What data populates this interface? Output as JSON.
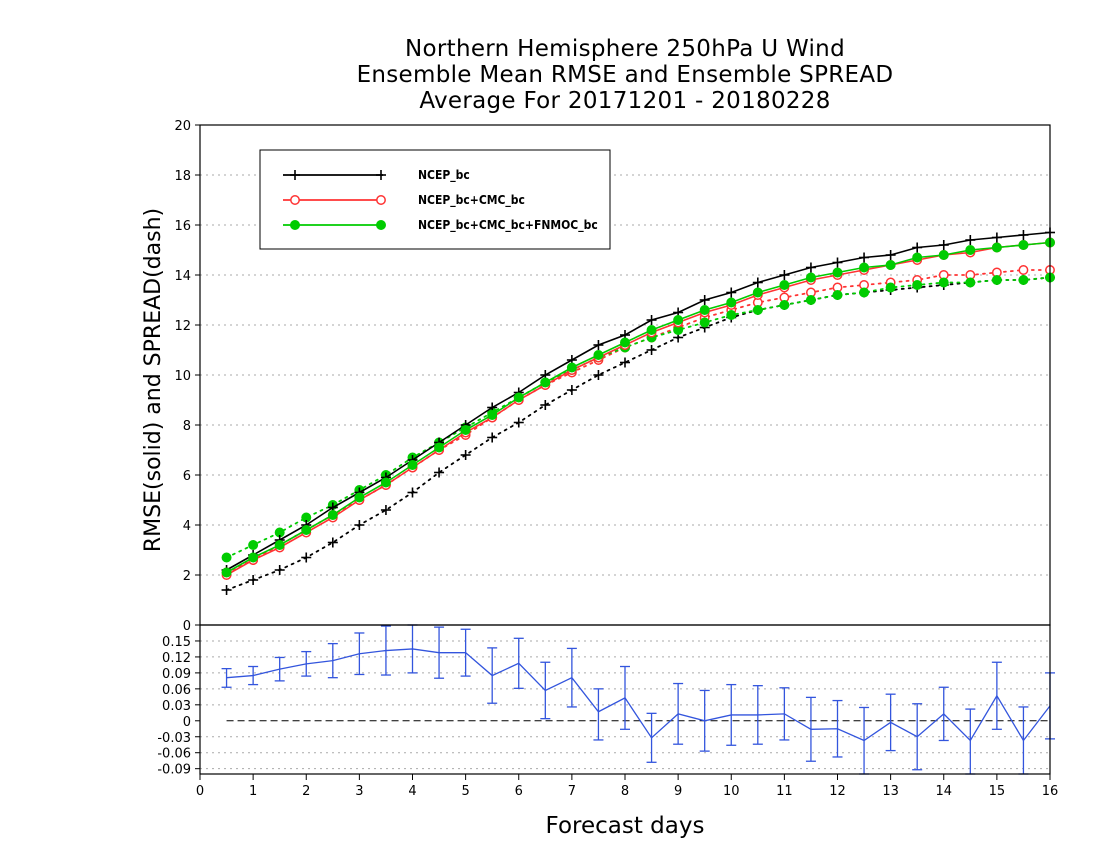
{
  "chart_data": [
    {
      "type": "line",
      "title": [
        "Northern Hemisphere 250hPa U Wind",
        "Ensemble Mean RMSE and Ensemble SPREAD",
        "Average For 20171201 - 20180228"
      ],
      "xlabel": "Forecast days",
      "ylabel": "RMSE(solid) and SPREAD(dash)",
      "xlim": [
        0,
        16
      ],
      "ylim": [
        0,
        20
      ],
      "xticks": [
        "0",
        "1",
        "2",
        "3",
        "4",
        "5",
        "6",
        "7",
        "8",
        "9",
        "10",
        "11",
        "12",
        "13",
        "14",
        "15",
        "16"
      ],
      "yticks": [
        "0",
        "2",
        "4",
        "6",
        "8",
        "10",
        "12",
        "14",
        "16",
        "18",
        "20"
      ],
      "grid": true,
      "legend_position": "top-left",
      "x": [
        0.5,
        1,
        1.5,
        2,
        2.5,
        3,
        3.5,
        4,
        4.5,
        5,
        5.5,
        6,
        6.5,
        7,
        7.5,
        8,
        8.5,
        9,
        9.5,
        10,
        10.5,
        11,
        11.5,
        12,
        12.5,
        13,
        13.5,
        14,
        14.5,
        15,
        15.5,
        16
      ],
      "series": [
        {
          "name": "NCEP_bc",
          "color": "#000000",
          "marker": "plus",
          "rmse": [
            2.2,
            2.8,
            3.4,
            4.0,
            4.7,
            5.3,
            5.9,
            6.6,
            7.3,
            8.0,
            8.7,
            9.3,
            10.0,
            10.6,
            11.2,
            11.6,
            12.2,
            12.5,
            13.0,
            13.3,
            13.7,
            14.0,
            14.3,
            14.5,
            14.7,
            14.8,
            15.1,
            15.2,
            15.4,
            15.5,
            15.6,
            15.7
          ],
          "spread": [
            1.4,
            1.8,
            2.2,
            2.7,
            3.3,
            4.0,
            4.6,
            5.3,
            6.1,
            6.8,
            7.5,
            8.1,
            8.8,
            9.4,
            10.0,
            10.5,
            11.0,
            11.5,
            11.9,
            12.3,
            12.6,
            12.8,
            13.0,
            13.2,
            13.3,
            13.4,
            13.5,
            13.6,
            13.7,
            13.8,
            13.8,
            13.9
          ]
        },
        {
          "name": "NCEP_bc+CMC_bc",
          "color": "#ff3333",
          "marker": "circle-open",
          "rmse": [
            2.0,
            2.6,
            3.1,
            3.7,
            4.3,
            5.0,
            5.6,
            6.3,
            7.0,
            7.7,
            8.3,
            9.0,
            9.6,
            10.2,
            10.7,
            11.2,
            11.7,
            12.1,
            12.5,
            12.8,
            13.2,
            13.5,
            13.8,
            14.0,
            14.2,
            14.4,
            14.6,
            14.8,
            14.9,
            15.1,
            15.2,
            15.3
          ],
          "spread": [
            2.1,
            2.6,
            3.2,
            3.8,
            4.4,
            5.0,
            5.6,
            6.3,
            7.0,
            7.6,
            8.3,
            9.0,
            9.6,
            10.1,
            10.6,
            11.1,
            11.5,
            11.9,
            12.3,
            12.6,
            12.9,
            13.1,
            13.3,
            13.5,
            13.6,
            13.7,
            13.8,
            14.0,
            14.0,
            14.1,
            14.2,
            14.2
          ]
        },
        {
          "name": "NCEP_bc+CMC_bc+FNMOC_bc",
          "color": "#00cc00",
          "marker": "circle-filled",
          "rmse": [
            2.1,
            2.7,
            3.2,
            3.8,
            4.4,
            5.1,
            5.7,
            6.4,
            7.1,
            7.8,
            8.4,
            9.1,
            9.7,
            10.3,
            10.8,
            11.3,
            11.8,
            12.2,
            12.6,
            12.9,
            13.3,
            13.6,
            13.9,
            14.1,
            14.3,
            14.4,
            14.7,
            14.8,
            15.0,
            15.1,
            15.2,
            15.3
          ],
          "spread": [
            2.7,
            3.2,
            3.7,
            4.3,
            4.8,
            5.4,
            6.0,
            6.7,
            7.3,
            7.9,
            8.5,
            9.1,
            9.7,
            10.2,
            10.7,
            11.1,
            11.5,
            11.8,
            12.1,
            12.4,
            12.6,
            12.8,
            13.0,
            13.2,
            13.3,
            13.5,
            13.6,
            13.7,
            13.7,
            13.8,
            13.8,
            13.9
          ]
        }
      ]
    },
    {
      "type": "line",
      "xlabel": "Forecast days",
      "xlim": [
        0,
        16
      ],
      "ylim": [
        -0.1,
        0.18
      ],
      "yticks": [
        "0.15",
        "0.12",
        "0.09",
        "0.06",
        "0.03",
        "0",
        "-0.03",
        "-0.06",
        "-0.09"
      ],
      "grid": true,
      "reference_line": 0,
      "series": [
        {
          "color": "#3355dd",
          "x": [
            0.5,
            1,
            1.5,
            2,
            2.5,
            3,
            3.5,
            4,
            4.5,
            5,
            5.5,
            6,
            6.5,
            7,
            7.5,
            8,
            8.5,
            9,
            9.5,
            10,
            10.5,
            11,
            11.5,
            12,
            12.5,
            13,
            13.5,
            14,
            14.5,
            15,
            15.5,
            16
          ],
          "y": [
            0.081,
            0.085,
            0.097,
            0.107,
            0.113,
            0.126,
            0.132,
            0.135,
            0.128,
            0.128,
            0.085,
            0.108,
            0.057,
            0.081,
            0.017,
            0.043,
            -0.032,
            0.013,
            0.0,
            0.011,
            0.011,
            0.013,
            -0.016,
            -0.015,
            -0.037,
            -0.003,
            -0.03,
            0.013,
            -0.037,
            0.047,
            -0.037,
            0.028
          ],
          "upper": [
            0.098,
            0.102,
            0.119,
            0.13,
            0.145,
            0.165,
            0.178,
            0.18,
            0.176,
            0.172,
            0.137,
            0.155,
            0.11,
            0.136,
            0.06,
            0.102,
            0.014,
            0.07,
            0.057,
            0.068,
            0.066,
            0.062,
            0.044,
            0.038,
            0.025,
            0.05,
            0.032,
            0.063,
            0.022,
            0.11,
            0.026,
            0.09
          ],
          "lower": [
            0.063,
            0.068,
            0.075,
            0.084,
            0.081,
            0.087,
            0.086,
            0.09,
            0.08,
            0.084,
            0.033,
            0.061,
            0.004,
            0.026,
            -0.036,
            -0.016,
            -0.078,
            -0.044,
            -0.057,
            -0.046,
            -0.044,
            -0.036,
            -0.076,
            -0.068,
            -0.1,
            -0.056,
            -0.092,
            -0.037,
            -0.1,
            -0.016,
            -0.1,
            -0.034
          ]
        }
      ]
    }
  ]
}
